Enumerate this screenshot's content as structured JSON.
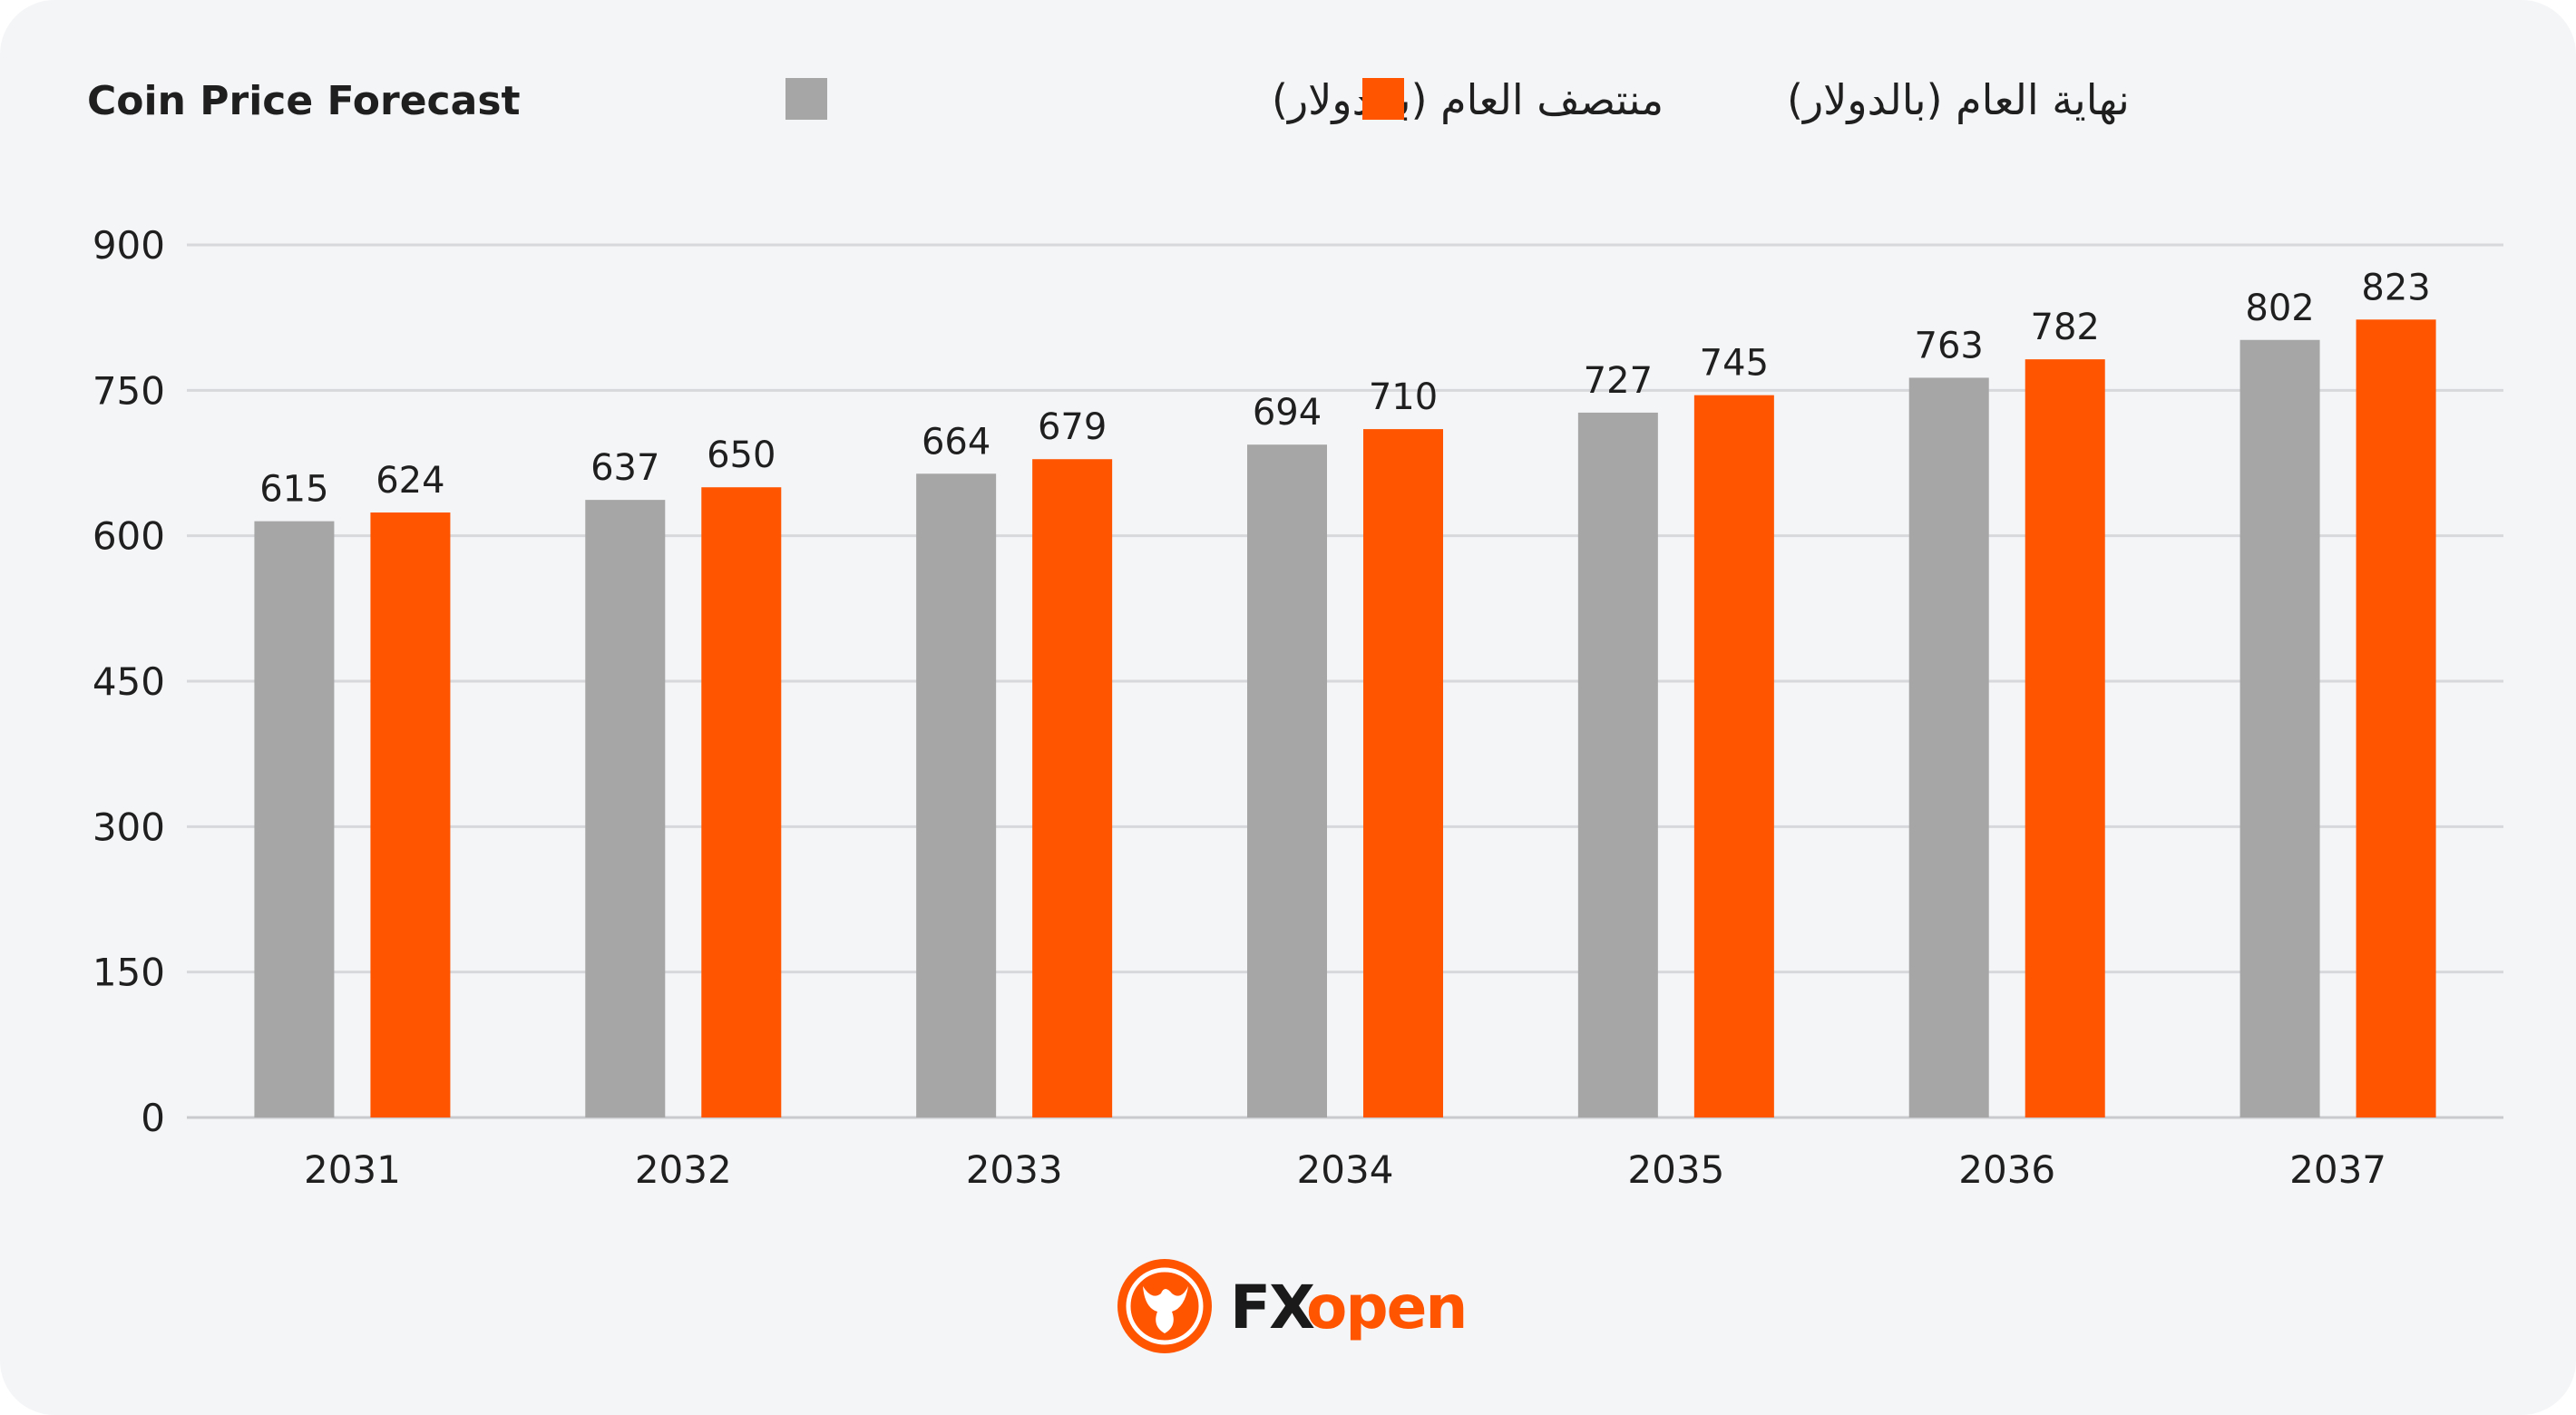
{
  "chart_data": {
    "type": "bar",
    "title": "Coin Price Forecast",
    "categories": [
      "2031",
      "2032",
      "2033",
      "2034",
      "2035",
      "2036",
      "2037"
    ],
    "series": [
      {
        "name": "منتصف العام (بالدولار)",
        "color": "#a6a6a6",
        "values": [
          615,
          637,
          664,
          694,
          727,
          763,
          802
        ]
      },
      {
        "name": "نهاية العام (بالدولار)",
        "color": "#ff5500",
        "values": [
          624,
          650,
          679,
          710,
          745,
          782,
          823
        ]
      }
    ],
    "ylim": [
      0,
      900
    ],
    "yticks": [
      0,
      150,
      300,
      450,
      600,
      750,
      900
    ],
    "xlabel": "",
    "ylabel": "",
    "grid": true,
    "legend": "top"
  },
  "branding": {
    "logo_text_part1": "FX",
    "logo_text_part2": "open",
    "logo_dark_color": "#1a1a1a",
    "logo_accent_color": "#ff5500"
  }
}
